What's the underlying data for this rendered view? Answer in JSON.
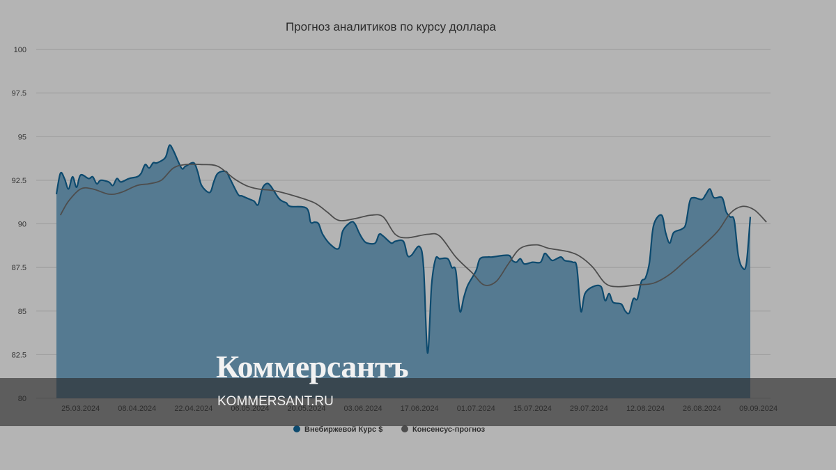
{
  "chart_data": {
    "type": "area",
    "title": "Прогноз аналитиков по курсу доллара",
    "ylim": [
      80,
      100
    ],
    "y_ticks": [
      "80",
      "82.5",
      "85",
      "87.5",
      "90",
      "92.5",
      "95",
      "97.5",
      "100"
    ],
    "x_range": [
      "2024-03-14",
      "2024-09-12"
    ],
    "x_ticks": [
      {
        "date": "2024-03-25",
        "label": "25.03.2024"
      },
      {
        "date": "2024-04-08",
        "label": "08.04.2024"
      },
      {
        "date": "2024-04-22",
        "label": "22.04.2024"
      },
      {
        "date": "2024-05-06",
        "label": "06.05.2024"
      },
      {
        "date": "2024-05-20",
        "label": "20.05.2024"
      },
      {
        "date": "2024-06-03",
        "label": "03.06.2024"
      },
      {
        "date": "2024-06-17",
        "label": "17.06.2024"
      },
      {
        "date": "2024-07-01",
        "label": "01.07.2024"
      },
      {
        "date": "2024-07-15",
        "label": "15.07.2024"
      },
      {
        "date": "2024-07-29",
        "label": "29.07.2024"
      },
      {
        "date": "2024-08-12",
        "label": "12.08.2024"
      },
      {
        "date": "2024-08-26",
        "label": "26.08.2024"
      },
      {
        "date": "2024-09-09",
        "label": "09.09.2024"
      }
    ],
    "grid": true,
    "legend_position": "bottom",
    "series": [
      {
        "name": "Внебиржевой Курс $",
        "color": "#0d4a6e",
        "fill": "#557a91",
        "points": [
          [
            "2024-03-19",
            91.7
          ],
          [
            "2024-03-20",
            92.9
          ],
          [
            "2024-03-21",
            92.6
          ],
          [
            "2024-03-22",
            92.0
          ],
          [
            "2024-03-23",
            92.7
          ],
          [
            "2024-03-24",
            92.1
          ],
          [
            "2024-03-25",
            92.8
          ],
          [
            "2024-03-27",
            92.6
          ],
          [
            "2024-03-28",
            92.7
          ],
          [
            "2024-03-29",
            92.3
          ],
          [
            "2024-03-30",
            92.5
          ],
          [
            "2024-04-01",
            92.4
          ],
          [
            "2024-04-02",
            92.2
          ],
          [
            "2024-04-03",
            92.6
          ],
          [
            "2024-04-04",
            92.4
          ],
          [
            "2024-04-06",
            92.6
          ],
          [
            "2024-04-08",
            92.7
          ],
          [
            "2024-04-09",
            92.9
          ],
          [
            "2024-04-10",
            93.4
          ],
          [
            "2024-04-11",
            93.2
          ],
          [
            "2024-04-12",
            93.5
          ],
          [
            "2024-04-13",
            93.5
          ],
          [
            "2024-04-15",
            93.8
          ],
          [
            "2024-04-16",
            94.5
          ],
          [
            "2024-04-17",
            94.2
          ],
          [
            "2024-04-19",
            93.2
          ],
          [
            "2024-04-20",
            93.3
          ],
          [
            "2024-04-22",
            93.5
          ],
          [
            "2024-04-23",
            93.0
          ],
          [
            "2024-04-24",
            92.2
          ],
          [
            "2024-04-26",
            91.8
          ],
          [
            "2024-04-27",
            92.4
          ],
          [
            "2024-04-28",
            92.9
          ],
          [
            "2024-04-30",
            93.0
          ],
          [
            "2024-05-01",
            92.6
          ],
          [
            "2024-05-03",
            91.7
          ],
          [
            "2024-05-04",
            91.6
          ],
          [
            "2024-05-06",
            91.4
          ],
          [
            "2024-05-07",
            91.3
          ],
          [
            "2024-05-08",
            91.1
          ],
          [
            "2024-05-09",
            92.0
          ],
          [
            "2024-05-10",
            92.3
          ],
          [
            "2024-05-11",
            92.2
          ],
          [
            "2024-05-13",
            91.5
          ],
          [
            "2024-05-14",
            91.3
          ],
          [
            "2024-05-15",
            91.2
          ],
          [
            "2024-05-16",
            91.0
          ],
          [
            "2024-05-20",
            90.9
          ],
          [
            "2024-05-21",
            90.1
          ],
          [
            "2024-05-22",
            90.1
          ],
          [
            "2024-05-23",
            90.0
          ],
          [
            "2024-05-24",
            89.4
          ],
          [
            "2024-05-26",
            88.8
          ],
          [
            "2024-05-28",
            88.6
          ],
          [
            "2024-05-29",
            89.6
          ],
          [
            "2024-05-31",
            90.1
          ],
          [
            "2024-06-01",
            90.0
          ],
          [
            "2024-06-02",
            89.5
          ],
          [
            "2024-06-03",
            89.1
          ],
          [
            "2024-06-04",
            88.9
          ],
          [
            "2024-06-06",
            88.9
          ],
          [
            "2024-06-07",
            89.4
          ],
          [
            "2024-06-08",
            89.3
          ],
          [
            "2024-06-10",
            88.9
          ],
          [
            "2024-06-11",
            89.0
          ],
          [
            "2024-06-13",
            89.0
          ],
          [
            "2024-06-14",
            88.2
          ],
          [
            "2024-06-15",
            88.2
          ],
          [
            "2024-06-17",
            88.7
          ],
          [
            "2024-06-18",
            87.5
          ],
          [
            "2024-06-19",
            82.6
          ],
          [
            "2024-06-20",
            86.5
          ],
          [
            "2024-06-21",
            88.0
          ],
          [
            "2024-06-22",
            88.0
          ],
          [
            "2024-06-24",
            88.0
          ],
          [
            "2024-06-25",
            87.5
          ],
          [
            "2024-06-26",
            87.3
          ],
          [
            "2024-06-27",
            85.0
          ],
          [
            "2024-06-28",
            85.8
          ],
          [
            "2024-06-29",
            86.5
          ],
          [
            "2024-07-01",
            87.3
          ],
          [
            "2024-07-02",
            88.0
          ],
          [
            "2024-07-04",
            88.1
          ],
          [
            "2024-07-05",
            88.1
          ],
          [
            "2024-07-09",
            88.2
          ],
          [
            "2024-07-10",
            87.9
          ],
          [
            "2024-07-11",
            87.8
          ],
          [
            "2024-07-12",
            88.0
          ],
          [
            "2024-07-13",
            87.7
          ],
          [
            "2024-07-15",
            87.8
          ],
          [
            "2024-07-17",
            87.8
          ],
          [
            "2024-07-18",
            88.3
          ],
          [
            "2024-07-19",
            88.1
          ],
          [
            "2024-07-20",
            87.9
          ],
          [
            "2024-07-22",
            88.1
          ],
          [
            "2024-07-23",
            87.9
          ],
          [
            "2024-07-25",
            87.8
          ],
          [
            "2024-07-26",
            87.5
          ],
          [
            "2024-07-27",
            85.0
          ],
          [
            "2024-07-28",
            86.0
          ],
          [
            "2024-07-30",
            86.4
          ],
          [
            "2024-08-01",
            86.4
          ],
          [
            "2024-08-02",
            85.6
          ],
          [
            "2024-08-03",
            86.0
          ],
          [
            "2024-08-04",
            85.5
          ],
          [
            "2024-08-06",
            85.4
          ],
          [
            "2024-08-07",
            85.0
          ],
          [
            "2024-08-08",
            84.9
          ],
          [
            "2024-08-09",
            85.7
          ],
          [
            "2024-08-10",
            85.7
          ],
          [
            "2024-08-11",
            86.7
          ],
          [
            "2024-08-12",
            86.9
          ],
          [
            "2024-08-13",
            87.8
          ],
          [
            "2024-08-14",
            89.9
          ],
          [
            "2024-08-16",
            90.5
          ],
          [
            "2024-08-17",
            89.5
          ],
          [
            "2024-08-18",
            88.9
          ],
          [
            "2024-08-19",
            89.5
          ],
          [
            "2024-08-21",
            89.7
          ],
          [
            "2024-08-22",
            90.0
          ],
          [
            "2024-08-23",
            91.3
          ],
          [
            "2024-08-24",
            91.5
          ],
          [
            "2024-08-26",
            91.4
          ],
          [
            "2024-08-27",
            91.7
          ],
          [
            "2024-08-28",
            92.0
          ],
          [
            "2024-08-29",
            91.5
          ],
          [
            "2024-08-31",
            91.5
          ],
          [
            "2024-09-01",
            90.7
          ],
          [
            "2024-09-02",
            90.4
          ],
          [
            "2024-09-03",
            90.2
          ],
          [
            "2024-09-04",
            88.2
          ],
          [
            "2024-09-05",
            87.5
          ],
          [
            "2024-09-06",
            87.7
          ],
          [
            "2024-09-07",
            90.4
          ]
        ]
      },
      {
        "name": "Консенсус-прогноз",
        "color": "#4d4d4d",
        "points": [
          [
            "2024-03-20",
            90.5
          ],
          [
            "2024-03-22",
            91.3
          ],
          [
            "2024-03-25",
            92.0
          ],
          [
            "2024-03-28",
            92.0
          ],
          [
            "2024-04-01",
            91.7
          ],
          [
            "2024-04-04",
            91.8
          ],
          [
            "2024-04-08",
            92.2
          ],
          [
            "2024-04-11",
            92.3
          ],
          [
            "2024-04-14",
            92.5
          ],
          [
            "2024-04-17",
            93.2
          ],
          [
            "2024-04-20",
            93.4
          ],
          [
            "2024-04-24",
            93.4
          ],
          [
            "2024-04-28",
            93.3
          ],
          [
            "2024-05-02",
            92.6
          ],
          [
            "2024-05-05",
            92.2
          ],
          [
            "2024-05-08",
            92.0
          ],
          [
            "2024-05-12",
            91.9
          ],
          [
            "2024-05-17",
            91.6
          ],
          [
            "2024-05-22",
            91.2
          ],
          [
            "2024-05-25",
            90.7
          ],
          [
            "2024-05-28",
            90.2
          ],
          [
            "2024-06-01",
            90.3
          ],
          [
            "2024-06-05",
            90.5
          ],
          [
            "2024-06-08",
            90.4
          ],
          [
            "2024-06-11",
            89.4
          ],
          [
            "2024-06-14",
            89.2
          ],
          [
            "2024-06-19",
            89.4
          ],
          [
            "2024-06-22",
            89.3
          ],
          [
            "2024-06-26",
            88.1
          ],
          [
            "2024-06-30",
            87.2
          ],
          [
            "2024-07-03",
            86.5
          ],
          [
            "2024-07-06",
            86.7
          ],
          [
            "2024-07-09",
            87.7
          ],
          [
            "2024-07-12",
            88.6
          ],
          [
            "2024-07-16",
            88.8
          ],
          [
            "2024-07-19",
            88.6
          ],
          [
            "2024-07-24",
            88.4
          ],
          [
            "2024-07-27",
            88.1
          ],
          [
            "2024-07-30",
            87.5
          ],
          [
            "2024-08-02",
            86.6
          ],
          [
            "2024-08-05",
            86.4
          ],
          [
            "2024-08-10",
            86.5
          ],
          [
            "2024-08-14",
            86.6
          ],
          [
            "2024-08-18",
            87.1
          ],
          [
            "2024-08-22",
            87.9
          ],
          [
            "2024-08-26",
            88.7
          ],
          [
            "2024-08-30",
            89.6
          ],
          [
            "2024-09-02",
            90.6
          ],
          [
            "2024-09-05",
            91.0
          ],
          [
            "2024-09-08",
            90.8
          ],
          [
            "2024-09-11",
            90.1
          ]
        ]
      }
    ]
  },
  "watermark": {
    "logo": "Коммерсантъ",
    "url": "KOMMERSANT.RU"
  }
}
